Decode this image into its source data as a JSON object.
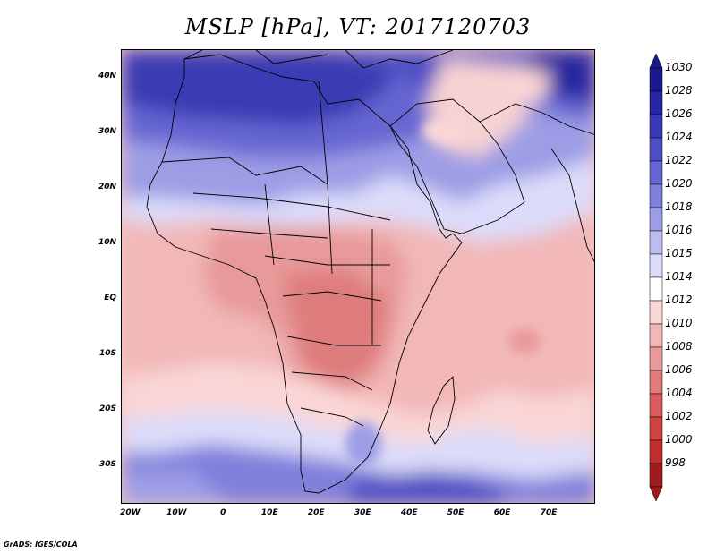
{
  "title": "MSLP [hPa], VT: 2017120703",
  "credit": "GrADS: IGES/COLA",
  "map": {
    "projection": "latlon",
    "lon_range": [
      -22,
      80
    ],
    "lat_range": [
      -37,
      45
    ],
    "lat_labels": [
      {
        "text": "40N",
        "lat": 40
      },
      {
        "text": "30N",
        "lat": 30
      },
      {
        "text": "20N",
        "lat": 20
      },
      {
        "text": "10N",
        "lat": 10
      },
      {
        "text": "EQ",
        "lat": 0
      },
      {
        "text": "10S",
        "lat": -10
      },
      {
        "text": "20S",
        "lat": -20
      },
      {
        "text": "30S",
        "lat": -30
      }
    ],
    "lon_labels": [
      {
        "text": "20W",
        "lon": -20
      },
      {
        "text": "10W",
        "lon": -10
      },
      {
        "text": "0",
        "lon": 0
      },
      {
        "text": "10E",
        "lon": 10
      },
      {
        "text": "20E",
        "lon": 20
      },
      {
        "text": "30E",
        "lon": 30
      },
      {
        "text": "40E",
        "lon": 40
      },
      {
        "text": "50E",
        "lon": 50
      },
      {
        "text": "60E",
        "lon": 60
      },
      {
        "text": "70E",
        "lon": 70
      }
    ]
  },
  "legend": {
    "levels": [
      {
        "label": "1030",
        "color": "#1a1a8c"
      },
      {
        "label": "1028",
        "color": "#2626a0"
      },
      {
        "label": "1026",
        "color": "#3a3ab4"
      },
      {
        "label": "1024",
        "color": "#4f4fc4"
      },
      {
        "label": "1022",
        "color": "#6666d2"
      },
      {
        "label": "1020",
        "color": "#8080dc"
      },
      {
        "label": "1018",
        "color": "#9d9de6"
      },
      {
        "label": "1016",
        "color": "#bcbcf0"
      },
      {
        "label": "1015",
        "color": "#dcdcfa"
      },
      {
        "label": "1014",
        "color": "#ffffff"
      },
      {
        "label": "1012",
        "color": "#fad6d6"
      },
      {
        "label": "1010",
        "color": "#f2b8b8"
      },
      {
        "label": "1008",
        "color": "#e89a9a"
      },
      {
        "label": "1006",
        "color": "#de7c7c"
      },
      {
        "label": "1004",
        "color": "#d85e5e"
      },
      {
        "label": "1002",
        "color": "#d04444"
      },
      {
        "label": "1000",
        "color": "#c02e2e"
      },
      {
        "label": "998",
        "color": "#a01c1c"
      }
    ]
  }
}
